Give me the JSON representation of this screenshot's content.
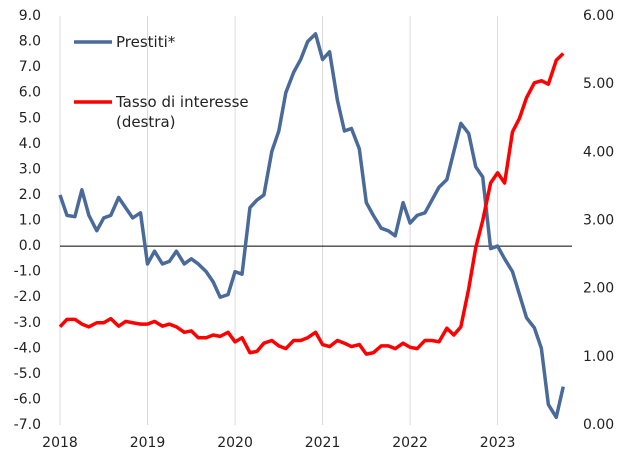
{
  "chart_data": {
    "type": "line",
    "x": [
      2018.0,
      2018.08,
      2018.17,
      2018.25,
      2018.33,
      2018.42,
      2018.5,
      2018.58,
      2018.67,
      2018.75,
      2018.83,
      2018.92,
      2019.0,
      2019.08,
      2019.17,
      2019.25,
      2019.33,
      2019.42,
      2019.5,
      2019.58,
      2019.67,
      2019.75,
      2019.83,
      2019.92,
      2020.0,
      2020.08,
      2020.17,
      2020.25,
      2020.33,
      2020.42,
      2020.5,
      2020.58,
      2020.67,
      2020.75,
      2020.83,
      2020.92,
      2021.0,
      2021.08,
      2021.17,
      2021.25,
      2021.33,
      2021.42,
      2021.5,
      2021.58,
      2021.67,
      2021.75,
      2021.83,
      2021.92,
      2022.0,
      2022.08,
      2022.17,
      2022.25,
      2022.33,
      2022.42,
      2022.5,
      2022.58,
      2022.67,
      2022.75,
      2022.83,
      2022.92,
      2023.0,
      2023.08,
      2023.17,
      2023.25,
      2023.33,
      2023.42,
      2023.5,
      2023.58,
      2023.67,
      2023.75
    ],
    "series": [
      {
        "name": "Prestiti*",
        "color": "#4a6a9a",
        "axis": "y",
        "values": [
          2.0,
          1.2,
          1.15,
          2.2,
          1.2,
          0.6,
          1.1,
          1.2,
          1.9,
          1.5,
          1.1,
          1.3,
          -0.7,
          -0.2,
          -0.7,
          -0.6,
          -0.2,
          -0.7,
          -0.5,
          -0.7,
          -1.0,
          -1.4,
          -2.0,
          -1.9,
          -1.0,
          -1.1,
          1.5,
          1.8,
          2.0,
          3.7,
          4.5,
          6.0,
          6.8,
          7.3,
          8.0,
          8.3,
          7.3,
          7.6,
          5.7,
          4.5,
          4.6,
          3.8,
          1.7,
          1.2,
          0.7,
          0.6,
          0.4,
          1.7,
          0.9,
          1.2,
          1.3,
          1.8,
          2.3,
          2.6,
          3.7,
          4.8,
          4.4,
          3.1,
          2.7,
          -0.1,
          0.0,
          -0.5,
          -1.0,
          -1.9,
          -2.8,
          -3.2,
          -4.0,
          -6.2,
          -6.7,
          -5.5
        ]
      },
      {
        "name": "Tasso di interesse (destra)",
        "color": "#ff0000",
        "axis": "y2",
        "values": [
          1.44,
          1.55,
          1.55,
          1.48,
          1.44,
          1.5,
          1.5,
          1.56,
          1.45,
          1.52,
          1.5,
          1.48,
          1.48,
          1.52,
          1.45,
          1.48,
          1.44,
          1.36,
          1.38,
          1.28,
          1.28,
          1.32,
          1.3,
          1.36,
          1.22,
          1.28,
          1.06,
          1.08,
          1.2,
          1.24,
          1.16,
          1.12,
          1.24,
          1.24,
          1.28,
          1.36,
          1.18,
          1.15,
          1.24,
          1.2,
          1.15,
          1.18,
          1.04,
          1.06,
          1.16,
          1.16,
          1.12,
          1.2,
          1.14,
          1.12,
          1.24,
          1.24,
          1.22,
          1.42,
          1.32,
          1.44,
          2.0,
          2.6,
          3.0,
          3.55,
          3.7,
          3.55,
          4.3,
          4.5,
          4.8,
          5.02,
          5.05,
          5.0,
          5.35,
          5.45
        ]
      }
    ],
    "xlim": [
      2018,
      2023.85
    ],
    "xticks": [
      2018,
      2019,
      2020,
      2021,
      2022,
      2023
    ],
    "ylim": [
      -7,
      9
    ],
    "yticks": [
      {
        "value": 9,
        "label": "9.0"
      },
      {
        "value": 8,
        "label": "8.0"
      },
      {
        "value": 7,
        "label": "7.0"
      },
      {
        "value": 6,
        "label": "6.0"
      },
      {
        "value": 5,
        "label": "5.0"
      },
      {
        "value": 4,
        "label": "4.0"
      },
      {
        "value": 3,
        "label": "3.0"
      },
      {
        "value": 2,
        "label": "2.0"
      },
      {
        "value": 1,
        "label": "1.0"
      },
      {
        "value": 0,
        "label": "0.0"
      },
      {
        "value": -1,
        "label": "-1.0"
      },
      {
        "value": -2,
        "label": "-2.0"
      },
      {
        "value": -3,
        "label": "-3.0"
      },
      {
        "value": -4,
        "label": "-4.0"
      },
      {
        "value": -5,
        "label": "-5.0"
      },
      {
        "value": -6,
        "label": "-6.0"
      },
      {
        "value": -7,
        "label": "-7.0"
      }
    ],
    "y2lim": [
      0,
      6
    ],
    "y2ticks": [
      {
        "value": 6,
        "label": "6.00"
      },
      {
        "value": 5,
        "label": "5.00"
      },
      {
        "value": 4,
        "label": "4.00"
      },
      {
        "value": 3,
        "label": "3.00"
      },
      {
        "value": 2,
        "label": "2.00"
      },
      {
        "value": 1,
        "label": "1.00"
      },
      {
        "value": 0,
        "label": "0.00"
      }
    ],
    "grid": true,
    "legend": "upper left"
  }
}
